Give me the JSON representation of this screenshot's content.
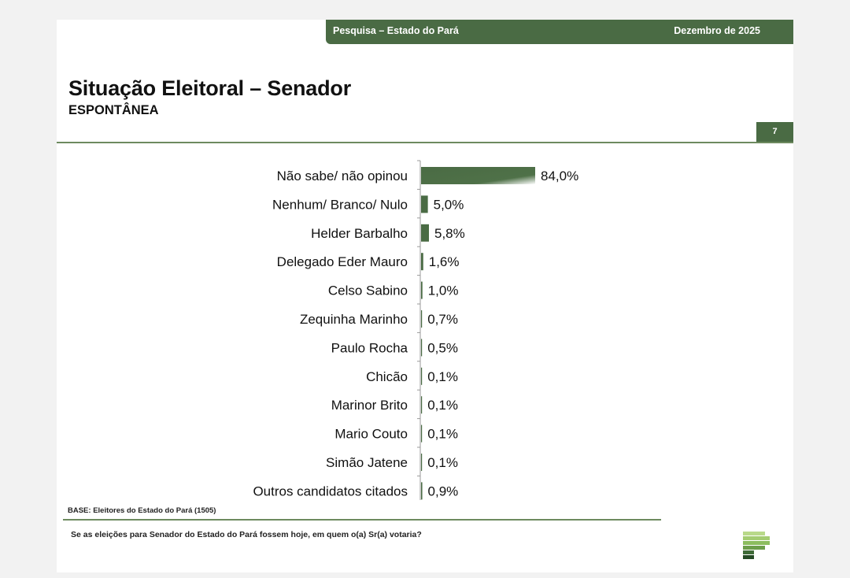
{
  "header": {
    "survey_label": "Pesquisa – Estado do Pará",
    "date_label": "Dezembro de 2025"
  },
  "title": "Situação Eleitoral – Senador",
  "subtitle": "ESPONTÂNEA",
  "page_number": "7",
  "chart_data": {
    "type": "bar",
    "orientation": "horizontal",
    "categories": [
      "Não sabe/ não opinou",
      "Nenhum/ Branco/ Nulo",
      "Helder Barbalho",
      "Delegado Eder Mauro",
      "Celso Sabino",
      "Zequinha Marinho",
      "Paulo Rocha",
      "Chicão",
      "Marinor Brito",
      "Mario Couto",
      "Simão Jatene",
      "Outros candidatos citados"
    ],
    "values": [
      84.0,
      5.0,
      5.8,
      1.6,
      1.0,
      0.7,
      0.5,
      0.1,
      0.1,
      0.1,
      0.1,
      0.9
    ],
    "value_labels": [
      "84,0%",
      "5,0%",
      "5,8%",
      "1,6%",
      "1,0%",
      "0,7%",
      "0,5%",
      "0,1%",
      "0,1%",
      "0,1%",
      "0,1%",
      "0,9%"
    ],
    "unit": "%",
    "bar_color": "#4a6b44",
    "grid": false
  },
  "base_note": "BASE: Eleitores do Estado do Pará (1505)",
  "question": "Se as eleições para Senador do Estado do Pará fossem hoje, em quem o(a) Sr(a) votaria?",
  "colors": {
    "accent": "#4a6b44",
    "accent_light": "#9bc26a"
  }
}
